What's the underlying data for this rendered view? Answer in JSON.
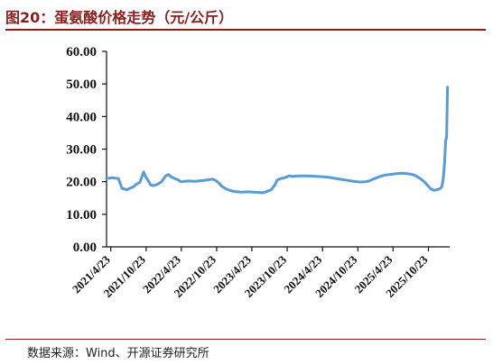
{
  "figure_title": "图20：蛋氨酸价格走势（元/公斤）",
  "source_note": "数据来源：Wind、开源证券研究所",
  "chart_data": {
    "type": "line",
    "title": "",
    "xlabel": "",
    "ylabel": "",
    "ylim": [
      0,
      60
    ],
    "yticks": [
      "0.00",
      "10.00",
      "20.00",
      "30.00",
      "40.00",
      "50.00",
      "60.00"
    ],
    "xticks": [
      "2021/4/23",
      "2021/10/23",
      "2022/4/23",
      "2022/10/23",
      "2023/4/23",
      "2023/10/23",
      "2024/4/23",
      "2024/10/23",
      "2025/4/23",
      "2025/10/23"
    ],
    "xlim": [
      "2021/4/1",
      "2026/2/10"
    ],
    "grid": false,
    "legend": "none",
    "line_color": "#5b9bd5",
    "series": [
      {
        "x": [
          "2021/4/1",
          "2021/5/1",
          "2021/6/1",
          "2021/6/20",
          "2021/7/15",
          "2021/8/1",
          "2021/8/20",
          "2021/9/1",
          "2021/9/20",
          "2021/10/1",
          "2021/10/10",
          "2021/10/20",
          "2021/11/1",
          "2021/11/15",
          "2021/12/1",
          "2021/12/20",
          "2022/1/10",
          "2022/2/1",
          "2022/2/15",
          "2022/3/1",
          "2022/3/20",
          "2022/4/5",
          "2022/4/20",
          "2022/5/10",
          "2022/6/1",
          "2022/7/1",
          "2022/8/1",
          "2022/9/1",
          "2022/10/1",
          "2022/10/20",
          "2022/11/5",
          "2022/11/20",
          "2022/12/10",
          "2023/1/1",
          "2023/1/20",
          "2023/2/10",
          "2023/3/1",
          "2023/4/1",
          "2023/5/1",
          "2023/6/1",
          "2023/6/15",
          "2023/7/1",
          "2023/8/1",
          "2023/8/20",
          "2023/9/1",
          "2023/9/20",
          "2023/10/10",
          "2023/11/1",
          "2023/11/20",
          "2023/12/1",
          "2024/1/1",
          "2024/2/1",
          "2024/3/1",
          "2024/4/1",
          "2024/5/1",
          "2024/6/1",
          "2024/7/1",
          "2024/8/1",
          "2024/9/1",
          "2024/10/1",
          "2024/11/1",
          "2024/12/1",
          "2024/12/20",
          "2025/1/10",
          "2025/2/1",
          "2025/2/20",
          "2025/3/10",
          "2025/4/1",
          "2025/5/1",
          "2025/6/1",
          "2025/7/1",
          "2025/8/1",
          "2025/8/20",
          "2025/9/10",
          "2025/10/1",
          "2025/10/20",
          "2025/11/5",
          "2025/11/20",
          "2025/12/5",
          "2025/12/15",
          "2025/12/25",
          "2026/1/1",
          "2026/1/8",
          "2026/1/15",
          "2026/1/20",
          "2026/1/25",
          "2026/1/30"
        ],
        "y": [
          21.0,
          21.2,
          21.0,
          18.0,
          17.5,
          18.0,
          18.5,
          19.2,
          19.8,
          21.5,
          23.0,
          21.5,
          20.5,
          19.0,
          18.8,
          19.2,
          20.0,
          21.8,
          22.2,
          21.5,
          21.0,
          20.6,
          20.0,
          20.1,
          20.2,
          20.1,
          20.3,
          20.5,
          20.8,
          20.3,
          19.5,
          18.5,
          17.8,
          17.3,
          17.0,
          16.9,
          16.8,
          16.9,
          16.8,
          16.7,
          16.6,
          16.8,
          17.5,
          19.0,
          20.5,
          21.0,
          21.2,
          21.8,
          21.6,
          21.7,
          21.8,
          21.8,
          21.7,
          21.6,
          21.5,
          21.3,
          21.0,
          20.7,
          20.4,
          20.1,
          19.9,
          20.0,
          20.2,
          20.8,
          21.3,
          21.7,
          22.0,
          22.2,
          22.4,
          22.6,
          22.5,
          22.2,
          21.8,
          21.0,
          20.0,
          18.8,
          17.8,
          17.4,
          17.5,
          17.7,
          18.0,
          18.5,
          21.0,
          26.0,
          32.5,
          33.5,
          49.0
        ]
      }
    ]
  }
}
